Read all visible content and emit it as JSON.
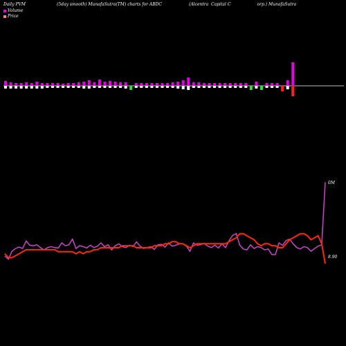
{
  "header": {
    "col1": "Daily PVM",
    "col2": "(5day smooth) MunafaSutra(TM) charts for ABDC",
    "col3": "(Alcentra  Capital C                    orp.) MunafaSutra"
  },
  "legend": {
    "volume": "Volume",
    "price": "Price"
  },
  "labels": {
    "volume_max": "0M",
    "price_last": "8.90"
  },
  "colors": {
    "background": "#000000",
    "pvm_positive": "#e600e6",
    "pvm_positive_negative_part": "#ffffff",
    "pvm_negative": "#33dd33",
    "pvm_red": "#ff2020",
    "volume_line": "#cc44cc",
    "price_line": "#ff2a00",
    "baseline": "#ffffff"
  },
  "chart_data": {
    "type": "bar",
    "pvm_bars": [
      {
        "up": 7,
        "down": 4,
        "color": "magenta"
      },
      {
        "up": 5,
        "down": 4,
        "color": "magenta"
      },
      {
        "up": 4,
        "down": 4,
        "color": "magenta"
      },
      {
        "up": 4,
        "down": 4,
        "color": "magenta"
      },
      {
        "up": 5,
        "down": 4,
        "color": "magenta"
      },
      {
        "up": 4,
        "down": 4,
        "color": "magenta"
      },
      {
        "up": 6,
        "down": 4,
        "color": "magenta"
      },
      {
        "up": 4,
        "down": 4,
        "color": "magenta"
      },
      {
        "up": 4,
        "down": 3,
        "color": "magenta"
      },
      {
        "up": 4,
        "down": 3,
        "color": "magenta"
      },
      {
        "up": 4,
        "down": 3,
        "color": "magenta"
      },
      {
        "up": 3,
        "down": 3,
        "color": "magenta"
      },
      {
        "up": 4,
        "down": 3,
        "color": "magenta"
      },
      {
        "up": 4,
        "down": 3,
        "color": "magenta"
      },
      {
        "up": 5,
        "down": 3,
        "color": "magenta"
      },
      {
        "up": 6,
        "down": 4,
        "color": "magenta"
      },
      {
        "up": 8,
        "down": 4,
        "color": "magenta"
      },
      {
        "up": 5,
        "down": 3,
        "color": "magenta"
      },
      {
        "up": 9,
        "down": 3,
        "color": "magenta"
      },
      {
        "up": 6,
        "down": 3,
        "color": "magenta"
      },
      {
        "up": 7,
        "down": 3,
        "color": "magenta"
      },
      {
        "up": 6,
        "down": 3,
        "color": "magenta"
      },
      {
        "up": 5,
        "down": 3,
        "color": "magenta"
      },
      {
        "up": 5,
        "down": 4,
        "color": "magenta"
      },
      {
        "up": 0,
        "down": 6,
        "color": "green"
      },
      {
        "up": 4,
        "down": 3,
        "color": "magenta"
      },
      {
        "up": 4,
        "down": 3,
        "color": "magenta"
      },
      {
        "up": 4,
        "down": 3,
        "color": "magenta"
      },
      {
        "up": 4,
        "down": 3,
        "color": "magenta"
      },
      {
        "up": 4,
        "down": 3,
        "color": "magenta"
      },
      {
        "up": 4,
        "down": 3,
        "color": "magenta"
      },
      {
        "up": 4,
        "down": 3,
        "color": "magenta"
      },
      {
        "up": 5,
        "down": 3,
        "color": "magenta"
      },
      {
        "up": 6,
        "down": 4,
        "color": "magenta"
      },
      {
        "up": 8,
        "down": 5,
        "color": "magenta"
      },
      {
        "up": 12,
        "down": 6,
        "color": "magenta"
      },
      {
        "up": 5,
        "down": 3,
        "color": "magenta"
      },
      {
        "up": 5,
        "down": 3,
        "color": "magenta"
      },
      {
        "up": 4,
        "down": 3,
        "color": "magenta"
      },
      {
        "up": 4,
        "down": 3,
        "color": "magenta"
      },
      {
        "up": 4,
        "down": 3,
        "color": "magenta"
      },
      {
        "up": 4,
        "down": 3,
        "color": "magenta"
      },
      {
        "up": 4,
        "down": 3,
        "color": "magenta"
      },
      {
        "up": 4,
        "down": 3,
        "color": "magenta"
      },
      {
        "up": 4,
        "down": 3,
        "color": "magenta"
      },
      {
        "up": 4,
        "down": 3,
        "color": "magenta"
      },
      {
        "up": 4,
        "down": 3,
        "color": "magenta"
      },
      {
        "up": 0,
        "down": 6,
        "color": "green"
      },
      {
        "up": 6,
        "down": 4,
        "color": "magenta"
      },
      {
        "up": 0,
        "down": 6,
        "color": "green"
      },
      {
        "up": 4,
        "down": 3,
        "color": "magenta"
      },
      {
        "up": 4,
        "down": 3,
        "color": "magenta"
      },
      {
        "up": 4,
        "down": 3,
        "color": "magenta"
      },
      {
        "up": 0,
        "down": 8,
        "color": "red"
      },
      {
        "up": 8,
        "down": 5,
        "color": "magenta"
      },
      {
        "up": 34,
        "down": 15,
        "color": "magenta-red"
      }
    ],
    "volume_line": [
      12,
      5,
      22,
      28,
      31,
      28,
      44,
      35,
      34,
      36,
      30,
      25,
      30,
      32,
      30,
      29,
      40,
      34,
      36,
      48,
      28,
      34,
      32,
      29,
      35,
      30,
      33,
      40,
      32,
      36,
      25,
      34,
      38,
      32,
      30,
      35,
      32,
      42,
      33,
      28,
      30,
      32,
      26,
      36,
      37,
      31,
      40,
      33,
      35,
      38,
      38,
      33,
      22,
      40,
      35,
      36,
      39,
      33,
      30,
      35,
      29,
      38,
      30,
      45,
      56,
      60,
      35,
      27,
      25,
      36,
      28,
      32,
      30,
      25,
      27,
      15,
      15,
      40,
      35,
      45,
      48,
      38,
      30,
      27,
      32,
      30,
      22,
      28,
      33,
      36,
      170
    ],
    "price_line": [
      8.95,
      8.93,
      8.93,
      8.94,
      8.95,
      8.96,
      8.97,
      8.97,
      8.97,
      8.97,
      8.97,
      8.97,
      8.97,
      8.97,
      8.97,
      8.96,
      8.96,
      8.96,
      8.96,
      8.96,
      8.95,
      8.96,
      8.95,
      8.96,
      8.96,
      8.97,
      8.97,
      8.98,
      8.98,
      8.98,
      8.98,
      8.98,
      8.98,
      8.99,
      8.99,
      8.99,
      8.99,
      8.98,
      8.98,
      8.98,
      8.98,
      8.98,
      8.99,
      8.99,
      8.99,
      9.0,
      9.0,
      9.01,
      9.01,
      9.0,
      9.0,
      8.99,
      8.98,
      8.99,
      9.0,
      9.0,
      9.0,
      9.0,
      9.0,
      9.0,
      9.0,
      9.0,
      9.0,
      9.01,
      9.02,
      9.03,
      9.05,
      9.05,
      9.04,
      9.03,
      9.02,
      9.0,
      8.99,
      9.0,
      9.0,
      8.99,
      8.99,
      8.98,
      8.98,
      9.0,
      9.02,
      9.03,
      9.04,
      9.05,
      9.05,
      9.04,
      9.02,
      9.03,
      9.04,
      9.0,
      8.9
    ],
    "price_range": [
      8.8,
      9.25
    ],
    "volume_range": [
      0,
      200
    ]
  }
}
